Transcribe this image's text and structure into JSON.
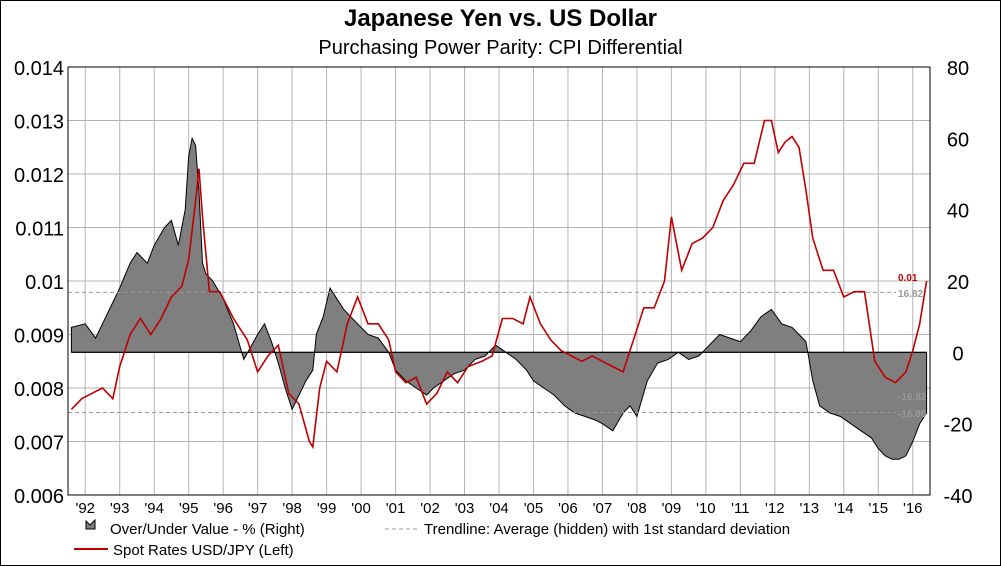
{
  "title": "Japanese Yen vs. US Dollar",
  "subtitle": "Purchasing Power Parity: CPI Differential",
  "chart_data": {
    "type": "line",
    "left_axis": {
      "min": 0.006,
      "max": 0.014,
      "ticks": [
        "0.006",
        "0.007",
        "0.008",
        "0.009",
        "0.01",
        "0.011",
        "0.012",
        "0.013",
        "0.014"
      ]
    },
    "right_axis": {
      "min": -40,
      "max": 80,
      "ticks": [
        "-40",
        "-20",
        "0",
        "20",
        "40",
        "60",
        "80"
      ]
    },
    "x_range": [
      1991.5,
      2016.5
    ],
    "x_ticks": [
      "'92",
      "'93",
      "'94",
      "'95",
      "'96",
      "'97",
      "'98",
      "'99",
      "'00",
      "'01",
      "'02",
      "'03",
      "'04",
      "'05",
      "'06",
      "'07",
      "'08",
      "'09",
      "'10",
      "'11",
      "'12",
      "'13",
      "'14",
      "'15",
      "'16"
    ],
    "grid": true,
    "legend_placement": "bottom",
    "series": [
      {
        "name": "Over/Under Value - %  (Right)",
        "axis": "right",
        "kind": "area",
        "color": "#7f7f7f",
        "x": [
          1991.6,
          1992.0,
          1992.3,
          1992.6,
          1993.0,
          1993.3,
          1993.5,
          1993.8,
          1994.0,
          1994.3,
          1994.5,
          1994.7,
          1994.9,
          1995.0,
          1995.1,
          1995.2,
          1995.3,
          1995.4,
          1995.5,
          1995.7,
          1996.0,
          1996.3,
          1996.6,
          1997.0,
          1997.2,
          1997.4,
          1997.6,
          1997.8,
          1998.0,
          1998.2,
          1998.4,
          1998.6,
          1998.7,
          1998.9,
          1999.1,
          1999.3,
          1999.5,
          1999.7,
          1999.9,
          2000.2,
          2000.5,
          2000.8,
          2001.0,
          2001.3,
          2001.6,
          2001.9,
          2002.1,
          2002.4,
          2002.7,
          2003.0,
          2003.3,
          2003.6,
          2003.9,
          2004.2,
          2004.5,
          2004.8,
          2005.0,
          2005.3,
          2005.6,
          2005.9,
          2006.2,
          2006.5,
          2006.8,
          2007.0,
          2007.3,
          2007.6,
          2007.8,
          2008.0,
          2008.3,
          2008.6,
          2008.9,
          2009.2,
          2009.5,
          2009.8,
          2010.1,
          2010.4,
          2010.7,
          2011.0,
          2011.3,
          2011.6,
          2011.9,
          2012.2,
          2012.5,
          2012.7,
          2012.9,
          2013.1,
          2013.3,
          2013.6,
          2013.9,
          2014.2,
          2014.5,
          2014.8,
          2015.0,
          2015.2,
          2015.4,
          2015.6,
          2015.8,
          2016.0,
          2016.2,
          2016.4
        ],
        "values": [
          7,
          8,
          4,
          10,
          18,
          25,
          28,
          25,
          30,
          35,
          37,
          30,
          40,
          55,
          60,
          58,
          45,
          25,
          22,
          20,
          15,
          8,
          -2,
          5,
          8,
          3,
          -3,
          -10,
          -16,
          -12,
          -8,
          -5,
          5,
          10,
          18,
          15,
          12,
          10,
          8,
          5,
          4,
          0,
          -5,
          -8,
          -10,
          -12,
          -10,
          -8,
          -6,
          -5,
          -2,
          -1,
          2,
          0,
          -2,
          -5,
          -8,
          -10,
          -12,
          -15,
          -17,
          -18,
          -19,
          -20,
          -22,
          -17,
          -15,
          -18,
          -8,
          -3,
          -2,
          0,
          -2,
          -1,
          2,
          5,
          4,
          3,
          6,
          10,
          12,
          8,
          7,
          5,
          3,
          -8,
          -15,
          -17,
          -18,
          -20,
          -22,
          -24,
          -27,
          -29,
          -30,
          -30,
          -29,
          -25,
          -20,
          -17
        ],
        "labels": [
          "-16.82",
          "-16.86"
        ]
      },
      {
        "name": "Spot Rates USD/JPY  (Left)",
        "axis": "left",
        "kind": "line",
        "color": "#c00000",
        "x": [
          1991.6,
          1991.9,
          1992.2,
          1992.5,
          1992.8,
          1993.0,
          1993.3,
          1993.6,
          1993.9,
          1994.2,
          1994.5,
          1994.8,
          1995.0,
          1995.2,
          1995.3,
          1995.4,
          1995.6,
          1995.9,
          1996.3,
          1996.7,
          1997.0,
          1997.3,
          1997.6,
          1997.9,
          1998.2,
          1998.5,
          1998.6,
          1998.8,
          1999.0,
          1999.3,
          1999.6,
          1999.9,
          2000.2,
          2000.5,
          2000.8,
          2001.0,
          2001.3,
          2001.6,
          2001.9,
          2002.2,
          2002.5,
          2002.8,
          2003.1,
          2003.5,
          2003.8,
          2004.1,
          2004.4,
          2004.7,
          2004.9,
          2005.2,
          2005.5,
          2005.8,
          2006.1,
          2006.4,
          2006.7,
          2007.0,
          2007.3,
          2007.6,
          2007.9,
          2008.2,
          2008.5,
          2008.8,
          2009.0,
          2009.3,
          2009.6,
          2009.9,
          2010.2,
          2010.5,
          2010.8,
          2011.1,
          2011.4,
          2011.7,
          2011.9,
          2012.1,
          2012.3,
          2012.5,
          2012.7,
          2012.9,
          2013.1,
          2013.4,
          2013.7,
          2014.0,
          2014.3,
          2014.6,
          2014.9,
          2015.2,
          2015.5,
          2015.8,
          2016.0,
          2016.2,
          2016.4
        ],
        "values": [
          0.0076,
          0.0078,
          0.0079,
          0.008,
          0.0078,
          0.0084,
          0.009,
          0.0093,
          0.009,
          0.0093,
          0.0097,
          0.0099,
          0.0104,
          0.0115,
          0.0121,
          0.0112,
          0.0098,
          0.0098,
          0.0093,
          0.0089,
          0.0083,
          0.0086,
          0.0088,
          0.0079,
          0.0077,
          0.007,
          0.0069,
          0.008,
          0.0085,
          0.0083,
          0.0092,
          0.0097,
          0.0092,
          0.0092,
          0.0089,
          0.0083,
          0.0081,
          0.0082,
          0.0077,
          0.0079,
          0.0083,
          0.0081,
          0.0084,
          0.0085,
          0.0086,
          0.0093,
          0.0093,
          0.0092,
          0.0097,
          0.0092,
          0.0089,
          0.0087,
          0.0086,
          0.0085,
          0.0086,
          0.0085,
          0.0084,
          0.0083,
          0.0089,
          0.0095,
          0.0095,
          0.01,
          0.0112,
          0.0102,
          0.0107,
          0.0108,
          0.011,
          0.0115,
          0.0118,
          0.0122,
          0.0122,
          0.013,
          0.013,
          0.0124,
          0.0126,
          0.0127,
          0.0125,
          0.0117,
          0.0108,
          0.0102,
          0.0102,
          0.0097,
          0.0098,
          0.0098,
          0.0085,
          0.0082,
          0.0081,
          0.0083,
          0.0087,
          0.0092,
          0.01
        ],
        "labels": [
          "0.01"
        ]
      },
      {
        "name": "Trendline: Average (hidden) with 1st standard deviation",
        "axis": "right",
        "kind": "dashed",
        "color": "#999999",
        "values": [
          16.82,
          -16.86
        ],
        "labels": [
          "16.82"
        ]
      }
    ]
  }
}
